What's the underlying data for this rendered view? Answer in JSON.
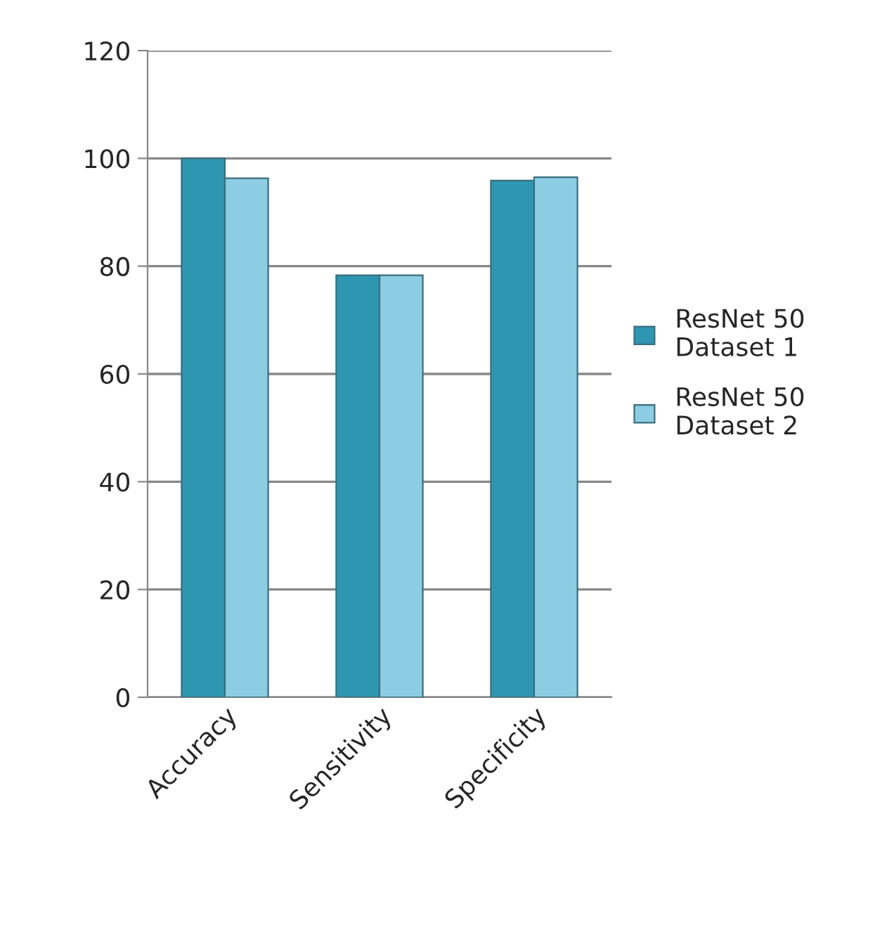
{
  "chart_data": {
    "type": "bar",
    "categories": [
      "Accuracy",
      "Sensitivity",
      "Specificity"
    ],
    "series": [
      {
        "name": "ResNet 50\nDataset 1",
        "color": "#2e96b0",
        "values": [
          100,
          78.3,
          95.9
        ]
      },
      {
        "name": "ResNet 50\nDataset 2",
        "color": "#8ccde3",
        "values": [
          96.3,
          78.3,
          96.5
        ]
      }
    ],
    "ylim": [
      0,
      120
    ],
    "yticks": [
      0,
      20,
      40,
      60,
      80,
      100,
      120
    ],
    "grid": "y",
    "legend": "right"
  }
}
